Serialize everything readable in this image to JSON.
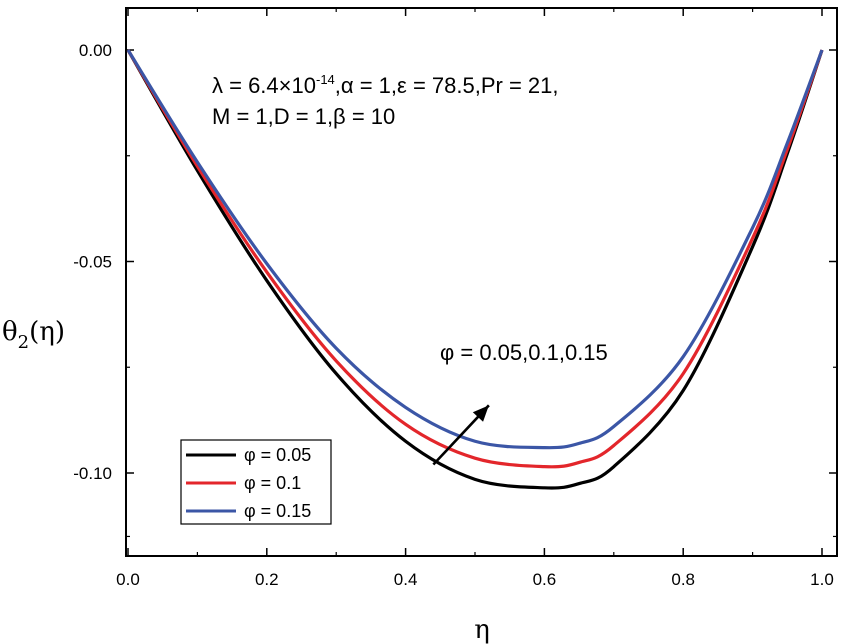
{
  "chart_data": {
    "type": "line",
    "title": "",
    "xlabel": "η",
    "ylabel_main": "θ",
    "ylabel_sub": "2",
    "ylabel_tail": "(η)",
    "xlim": [
      0.0,
      1.0
    ],
    "ylim": [
      -0.12,
      0.01
    ],
    "x_ticks": [
      0.0,
      0.2,
      0.4,
      0.6,
      0.8,
      1.0
    ],
    "x_tick_labels": [
      "0.0",
      "0.2",
      "0.4",
      "0.6",
      "0.8",
      "1.0"
    ],
    "y_ticks": [
      0.0,
      -0.05,
      -0.1
    ],
    "y_tick_labels": [
      "0.00",
      "-0.05",
      "-0.10"
    ],
    "annotation_params": {
      "line1": "λ = 6.4×10",
      "line1_exp": "-14",
      "line1_tail": ",α = 1,ε = 78.5,Pr = 21,",
      "line2": "M = 1,D = 1,β = 10"
    },
    "annotation_arrow": {
      "label": "φ = 0.05,0.1,0.15",
      "from": [
        0.44,
        -0.098
      ],
      "to": [
        0.52,
        -0.084
      ]
    },
    "legend": {
      "placement": "lower-left",
      "entries": [
        "φ = 0.05",
        "φ = 0.1",
        "φ = 0.15"
      ]
    },
    "series": [
      {
        "name": "φ = 0.05",
        "color": "#000000",
        "x": [
          0.0,
          0.1,
          0.2,
          0.3,
          0.4,
          0.5,
          0.6,
          0.65,
          0.7,
          0.8,
          0.9,
          0.95,
          1.0
        ],
        "y": [
          0.0,
          -0.0285,
          -0.0545,
          -0.0765,
          -0.0925,
          -0.1015,
          -0.1035,
          -0.1025,
          -0.0985,
          -0.0805,
          -0.0465,
          -0.0245,
          0.0
        ]
      },
      {
        "name": "φ = 0.1",
        "color": "#e3262b",
        "x": [
          0.0,
          0.1,
          0.2,
          0.3,
          0.4,
          0.5,
          0.6,
          0.65,
          0.7,
          0.8,
          0.9,
          0.95,
          1.0
        ],
        "y": [
          0.0,
          -0.0275,
          -0.0525,
          -0.0735,
          -0.0885,
          -0.0965,
          -0.0985,
          -0.0975,
          -0.0935,
          -0.0765,
          -0.0445,
          -0.0235,
          0.0
        ]
      },
      {
        "name": "φ = 0.15",
        "color": "#3b56a6",
        "x": [
          0.0,
          0.1,
          0.2,
          0.3,
          0.4,
          0.5,
          0.6,
          0.65,
          0.7,
          0.8,
          0.9,
          0.95,
          1.0
        ],
        "y": [
          0.0,
          -0.0265,
          -0.0505,
          -0.0705,
          -0.0845,
          -0.0925,
          -0.094,
          -0.093,
          -0.089,
          -0.0725,
          -0.042,
          -0.022,
          0.0
        ]
      }
    ]
  }
}
